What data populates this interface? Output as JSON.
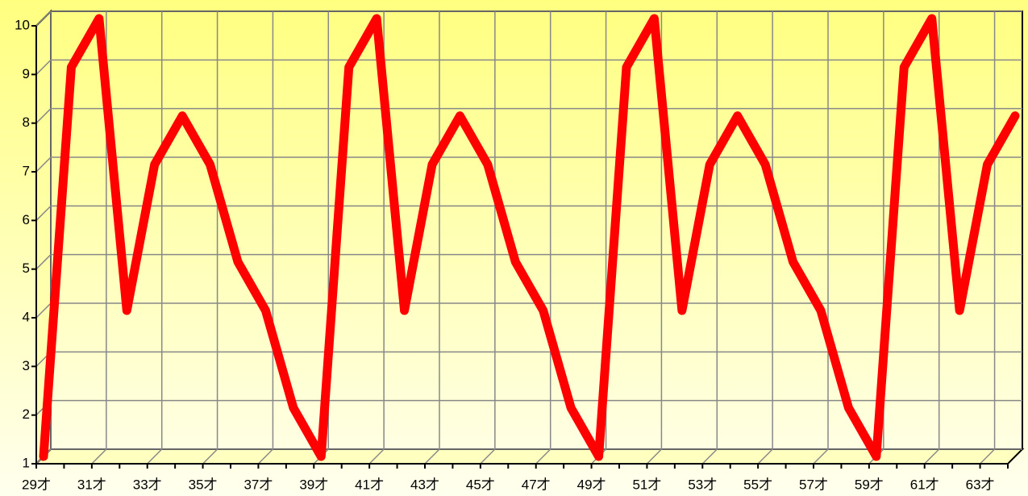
{
  "chart_data": {
    "type": "line",
    "categories": [
      "29才",
      null,
      "31才",
      null,
      "33才",
      null,
      "35才",
      null,
      "37才",
      null,
      "39才",
      null,
      "41才",
      null,
      "43才",
      null,
      "45才",
      null,
      "47才",
      null,
      "49才",
      null,
      "51才",
      null,
      "53才",
      null,
      "55才",
      null,
      "57才",
      null,
      "59才",
      null,
      "61才",
      null,
      "63才",
      null
    ],
    "series": [
      {
        "color": "#ff0000",
        "values": [
          1,
          9,
          10,
          4,
          7,
          8,
          7,
          5,
          4,
          2,
          1,
          9,
          10,
          4,
          7,
          8,
          7,
          5,
          4,
          2,
          1,
          9,
          10,
          4,
          7,
          8,
          7,
          5,
          4,
          2,
          1,
          9,
          10,
          4,
          7,
          8
        ]
      }
    ],
    "ylim": [
      1,
      10
    ],
    "yticks": [
      1,
      2,
      3,
      4,
      5,
      6,
      7,
      8,
      9,
      10
    ],
    "grid": true
  }
}
